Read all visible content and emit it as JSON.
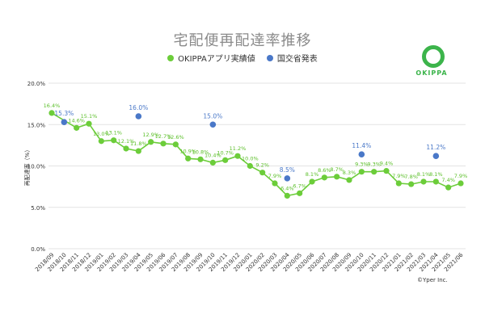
{
  "title": "宅配便再配達率推移",
  "legend": [
    {
      "label": "OKIPPAアプリ実績値",
      "color": "#6ccd3a"
    },
    {
      "label": "国交省発表",
      "color": "#4a78c8"
    }
  ],
  "logo_text": "OKIPPA",
  "credit": "©Yper Inc.",
  "chart_data": {
    "type": "line",
    "title": "宅配便再配達率推移",
    "ylabel": "再配達率（%）",
    "xlabel": "",
    "ylim": [
      0,
      20
    ],
    "yticks": [
      "0.0%",
      "5.0%",
      "10.0%",
      "15.0%",
      "20.0%"
    ],
    "grid": true,
    "legend_position": "top-center",
    "categories": [
      "2018/09",
      "2018/10",
      "2018/11",
      "2018/12",
      "2019/01",
      "2019/02",
      "2019/03",
      "2019/04",
      "2019/05",
      "2019/06",
      "2019/07",
      "2019/08",
      "2019/09",
      "2019/10",
      "2019/11",
      "2019/12",
      "2020/01",
      "2020/02",
      "2020/03",
      "2020/04",
      "2020/05",
      "2020/06",
      "2020/07",
      "2020/08",
      "2020/09",
      "2020/10",
      "2020/11",
      "2020/12",
      "2021/01",
      "2021/02",
      "2021/03",
      "2021/04",
      "2021/05",
      "2021/06"
    ],
    "series": [
      {
        "name": "OKIPPAアプリ実績値",
        "color": "#6ccd3a",
        "values": [
          16.4,
          null,
          14.6,
          15.1,
          13.0,
          13.1,
          12.1,
          11.8,
          12.9,
          12.7,
          12.6,
          10.9,
          10.8,
          10.4,
          10.7,
          11.2,
          10.0,
          9.2,
          7.9,
          6.4,
          6.7,
          8.1,
          8.6,
          8.7,
          8.3,
          9.3,
          9.3,
          9.4,
          7.9,
          7.8,
          8.1,
          8.1,
          7.4,
          7.9
        ],
        "labels": [
          "16.4%",
          null,
          "14.6%",
          "15.1%",
          "13.0%",
          "13.1%",
          "12.1%",
          "11.8%",
          "12.9%",
          "12.7%",
          "12.6%",
          "10.9%",
          "10.8%",
          "10.4%",
          "10.7%",
          "11.2%",
          "10.0%",
          "9.2%",
          "7.9%",
          "6.4%",
          "6.7%",
          "8.1%",
          "8.6%",
          "8.7%",
          "8.3%",
          "9.3%",
          "9.3%",
          "9.4%",
          "7.9%",
          "7.8%",
          "8.1%",
          "8.1%",
          "7.4%",
          "7.9%"
        ]
      },
      {
        "name": "国交省発表",
        "color": "#4a78c8",
        "points": [
          {
            "x": "2018/10",
            "y": 15.3,
            "label": "15.3%"
          },
          {
            "x": "2019/04",
            "y": 16.0,
            "label": "16.0%"
          },
          {
            "x": "2019/10",
            "y": 15.0,
            "label": "15.0%"
          },
          {
            "x": "2020/04",
            "y": 8.5,
            "label": "8.5%"
          },
          {
            "x": "2020/10",
            "y": 11.4,
            "label": "11.4%"
          },
          {
            "x": "2021/04",
            "y": 11.2,
            "label": "11.2%"
          }
        ]
      }
    ]
  }
}
